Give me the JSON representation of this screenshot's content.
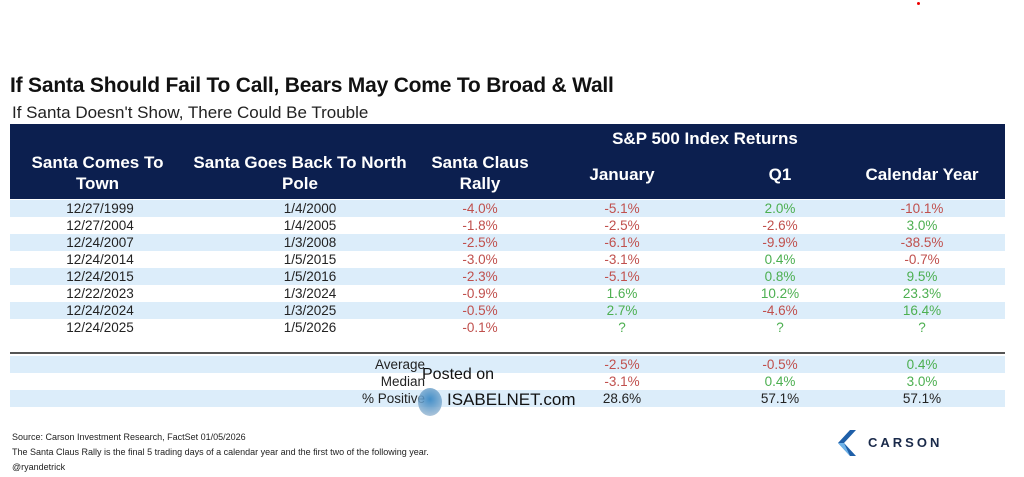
{
  "title": "If Santa Should Fail To Call, Bears May Come To Broad & Wall",
  "subtitle": "If Santa Doesn't Show, There Could Be Trouble",
  "chart_data": {
    "type": "table",
    "group_header": "S&P 500 Index Returns",
    "columns": [
      "Santa Comes To Town",
      "Santa Goes Back To North Pole",
      "Santa Claus Rally",
      "January",
      "Q1",
      "Calendar Year"
    ],
    "rows": [
      [
        "12/27/1999",
        "1/4/2000",
        "-4.0%",
        "-5.1%",
        "2.0%",
        "-10.1%"
      ],
      [
        "12/27/2004",
        "1/4/2005",
        "-1.8%",
        "-2.5%",
        "-2.6%",
        "3.0%"
      ],
      [
        "12/24/2007",
        "1/3/2008",
        "-2.5%",
        "-6.1%",
        "-9.9%",
        "-38.5%"
      ],
      [
        "12/24/2014",
        "1/5/2015",
        "-3.0%",
        "-3.1%",
        "0.4%",
        "-0.7%"
      ],
      [
        "12/24/2015",
        "1/5/2016",
        "-2.3%",
        "-5.1%",
        "0.8%",
        "9.5%"
      ],
      [
        "12/22/2023",
        "1/3/2024",
        "-0.9%",
        "1.6%",
        "10.2%",
        "23.3%"
      ],
      [
        "12/24/2024",
        "1/3/2025",
        "-0.5%",
        "2.7%",
        "-4.6%",
        "16.4%"
      ],
      [
        "12/24/2025",
        "1/5/2026",
        "-0.1%",
        "?",
        "?",
        "?"
      ]
    ],
    "summary": [
      {
        "label": "Average",
        "values": [
          "-2.5%",
          "-0.5%",
          "0.4%"
        ]
      },
      {
        "label": "Median",
        "values": [
          "-3.1%",
          "0.4%",
          "3.0%"
        ]
      },
      {
        "label": "% Positive",
        "values": [
          "28.6%",
          "57.1%",
          "57.1%"
        ]
      }
    ],
    "colors": {
      "header": "#0c1f4f",
      "negative": "#c0504d",
      "positive": "#4caf50",
      "band": "#dcedfa"
    }
  },
  "watermark": {
    "line1": "Posted on",
    "line2": "ISABELNET.com"
  },
  "footer": {
    "source": "Source: Carson Investment Research, FactSet 01/05/2026",
    "note": "The Santa Claus Rally is the final 5 trading days of a calendar year and the first two of the following year.",
    "handle": "@ryandetrick"
  },
  "logo": "CARSON"
}
